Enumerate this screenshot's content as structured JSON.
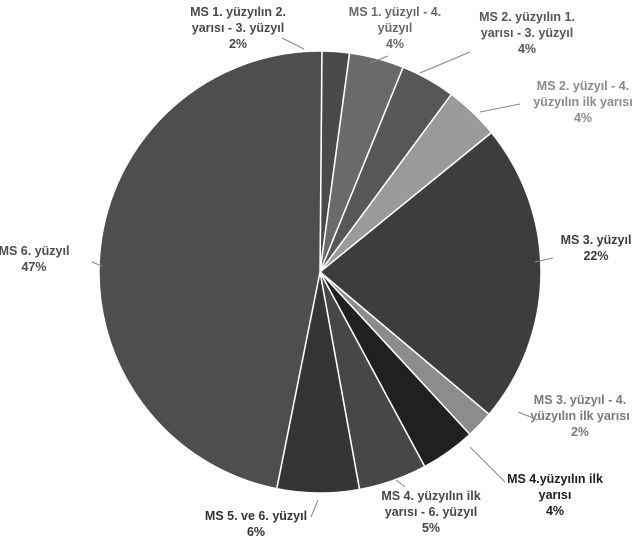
{
  "chart_data": {
    "type": "pie",
    "title": "",
    "slices": [
      {
        "label_lines": [
          "MS 1. yüzyılın 2.",
          "yarısı - 3. yüzyıl"
        ],
        "percent_label": "2%",
        "value": 2,
        "color": "#4a4a4a",
        "label_color": "#4a4a4a"
      },
      {
        "label_lines": [
          "MS 1. yüzyıl - 4.",
          "yüzyıl"
        ],
        "percent_label": "4%",
        "value": 4,
        "color": "#6a6a6a",
        "label_color": "#6a6a6a"
      },
      {
        "label_lines": [
          "MS 2. yüzyılın 1.",
          "yarısı - 3. yüzyıl"
        ],
        "percent_label": "4%",
        "value": 4,
        "color": "#575757",
        "label_color": "#575757"
      },
      {
        "label_lines": [
          "MS 2. yüzyıl - 4.",
          "yüzyılın ilk yarısı"
        ],
        "percent_label": "4%",
        "value": 4,
        "color": "#9a9a9a",
        "label_color": "#8a8a8a"
      },
      {
        "label_lines": [
          "MS 3. yüzyıl"
        ],
        "percent_label": "22%",
        "value": 22,
        "color": "#3d3d3d",
        "label_color": "#3d3d3d"
      },
      {
        "label_lines": [
          "MS 3. yüzyıl - 4.",
          "yüzyılın ilk yarısı"
        ],
        "percent_label": "2%",
        "value": 2,
        "color": "#8c8c8c",
        "label_color": "#7a7a7a"
      },
      {
        "label_lines": [
          "MS 4.yüzyılın ilk",
          "yarısı"
        ],
        "percent_label": "4%",
        "value": 4,
        "color": "#202020",
        "label_color": "#202020"
      },
      {
        "label_lines": [
          "MS 4. yüzyılın ilk",
          "yarısı - 6. yüzyıl"
        ],
        "percent_label": "5%",
        "value": 5,
        "color": "#474747",
        "label_color": "#474747"
      },
      {
        "label_lines": [
          "MS 5. ve 6. yüzyıl"
        ],
        "percent_label": "6%",
        "value": 6,
        "color": "#353535",
        "label_color": "#353535"
      },
      {
        "label_lines": [
          "MS 6. yüzyıl"
        ],
        "percent_label": "47%",
        "value": 47,
        "color": "#4e4e4e",
        "label_color": "#4e4e4e"
      }
    ],
    "legend": "none"
  }
}
